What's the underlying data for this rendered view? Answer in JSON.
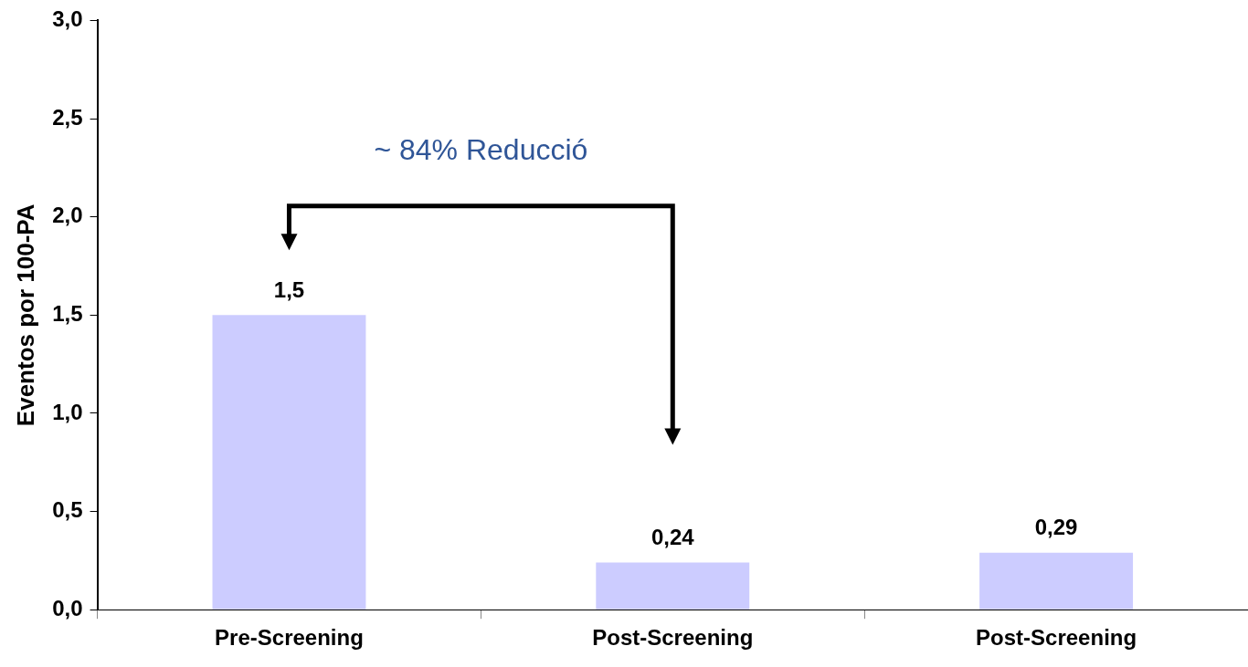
{
  "chart_data": {
    "type": "bar",
    "ylabel": "Eventos por 100-PA",
    "categories": [
      "Pre-Screening",
      "Post-Screening",
      "Post-Screening"
    ],
    "values": [
      1.5,
      0.24,
      0.29
    ],
    "color": "#ccccff",
    "value_labels": [
      "1,5",
      "0,24",
      "0,29"
    ],
    "ylim": [
      0,
      3
    ],
    "yticks": [
      {
        "value": 0,
        "label": "0,0"
      },
      {
        "value": 0.5,
        "label": "0,5"
      },
      {
        "value": 1,
        "label": "1,0"
      },
      {
        "value": 1.5,
        "label": "1,5"
      },
      {
        "value": 2,
        "label": "2,0"
      },
      {
        "value": 2.5,
        "label": "2,5"
      },
      {
        "value": 3,
        "label": "3,0"
      }
    ],
    "annotations": [
      "~ 84% Reducció"
    ],
    "grid": false,
    "legend": false
  }
}
